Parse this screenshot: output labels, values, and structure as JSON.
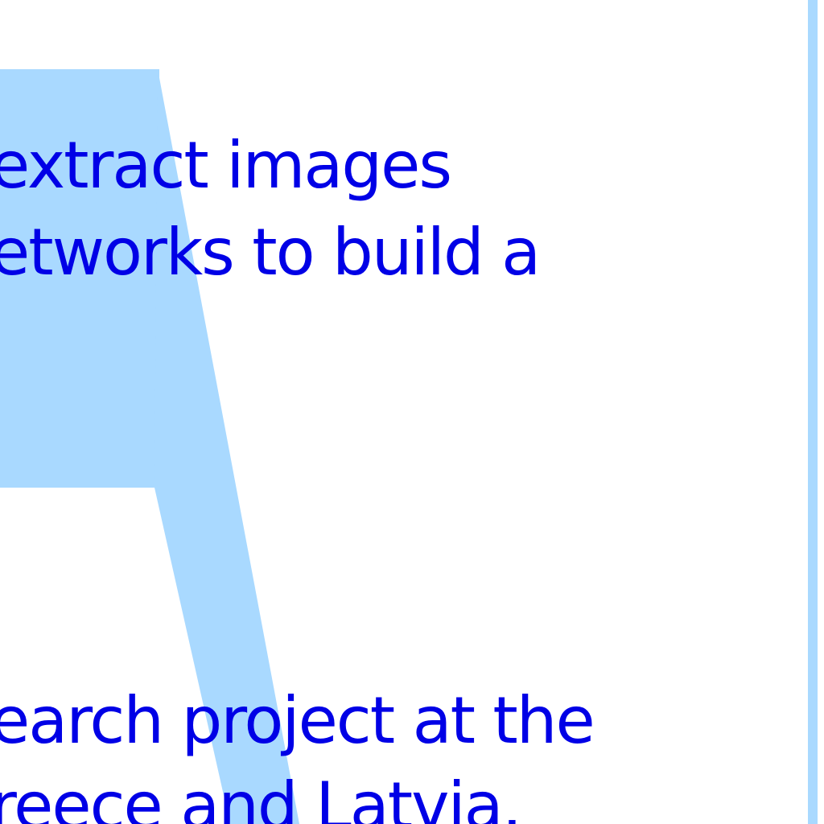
{
  "colors": {
    "text": "#0000e6",
    "shape": "#a9d9ff",
    "background": "#ffffff"
  },
  "text_block_top": {
    "line1": "extract images",
    "line2": "etworks to build a"
  },
  "text_block_bottom": {
    "line1": "earch project at the",
    "line2": "reece and Latvia."
  }
}
